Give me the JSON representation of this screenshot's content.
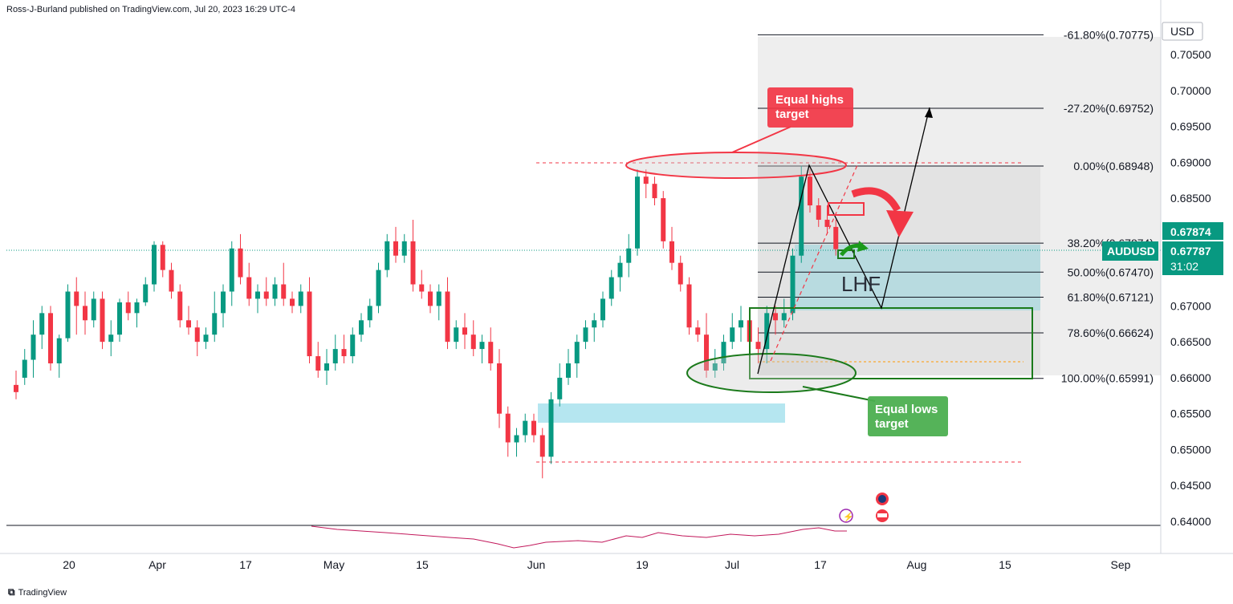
{
  "header": {
    "text": "Ross-J-Burland published on TradingView.com, Jul 20, 2023 16:29 UTC-4"
  },
  "footer": {
    "logo_icon": "tradingview-logo-icon",
    "brand": "TradingView"
  },
  "colors": {
    "up": "#089981",
    "down": "#f23645",
    "axis_label_bg": "#089981",
    "fib_zone": "#e6e6e6",
    "target_zone": "#a9d8df"
  },
  "chart_data": {
    "type": "candlestick",
    "symbol": "AUDUSD",
    "currency": "USD",
    "y_ticks": [
      "0.70500",
      "0.70000",
      "0.69500",
      "0.69000",
      "0.68500",
      "0.68000",
      "0.67500",
      "0.67000",
      "0.66500",
      "0.66000",
      "0.65500",
      "0.65000",
      "0.64500",
      "0.64000"
    ],
    "ylim": [
      0.6395,
      0.7088
    ],
    "x_ticks": [
      "20",
      "Apr",
      "17",
      "May",
      "15",
      "Jun",
      "19",
      "Jul",
      "17",
      "Aug",
      "15",
      "Sep"
    ],
    "last_price": "0.67787",
    "last_price_high_label": "0.67874",
    "countdown": "31:02",
    "fib_levels": [
      {
        "ratio": "-61.80%",
        "price": "0.70775"
      },
      {
        "ratio": "-27.20%",
        "price": "0.69752"
      },
      {
        "ratio": "0.00%",
        "price": "0.68948"
      },
      {
        "ratio": "38.20%",
        "price": "0.67874"
      },
      {
        "ratio": "50.00%",
        "price": "0.67470"
      },
      {
        "ratio": "61.80%",
        "price": "0.67121"
      },
      {
        "ratio": "78.60%",
        "price": "0.66624"
      },
      {
        "ratio": "100.00%",
        "price": "0.65991"
      }
    ],
    "annotations": {
      "equal_highs": "Equal highs target",
      "equal_lows": "Equal lows target",
      "lhf": "LHF"
    },
    "candles": [
      {
        "o": 0.659,
        "h": 0.661,
        "l": 0.657,
        "c": 0.658
      },
      {
        "o": 0.66,
        "h": 0.664,
        "l": 0.659,
        "c": 0.6625
      },
      {
        "o": 0.6625,
        "h": 0.668,
        "l": 0.66,
        "c": 0.666
      },
      {
        "o": 0.666,
        "h": 0.67,
        "l": 0.664,
        "c": 0.669
      },
      {
        "o": 0.669,
        "h": 0.67,
        "l": 0.661,
        "c": 0.662
      },
      {
        "o": 0.662,
        "h": 0.666,
        "l": 0.66,
        "c": 0.6655
      },
      {
        "o": 0.6655,
        "h": 0.673,
        "l": 0.665,
        "c": 0.672
      },
      {
        "o": 0.672,
        "h": 0.674,
        "l": 0.666,
        "c": 0.67
      },
      {
        "o": 0.67,
        "h": 0.672,
        "l": 0.666,
        "c": 0.668
      },
      {
        "o": 0.668,
        "h": 0.672,
        "l": 0.667,
        "c": 0.671
      },
      {
        "o": 0.671,
        "h": 0.672,
        "l": 0.664,
        "c": 0.665
      },
      {
        "o": 0.665,
        "h": 0.668,
        "l": 0.663,
        "c": 0.666
      },
      {
        "o": 0.666,
        "h": 0.671,
        "l": 0.665,
        "c": 0.6705
      },
      {
        "o": 0.6705,
        "h": 0.672,
        "l": 0.668,
        "c": 0.669
      },
      {
        "o": 0.669,
        "h": 0.671,
        "l": 0.667,
        "c": 0.6705
      },
      {
        "o": 0.6705,
        "h": 0.674,
        "l": 0.67,
        "c": 0.673
      },
      {
        "o": 0.673,
        "h": 0.679,
        "l": 0.672,
        "c": 0.6785
      },
      {
        "o": 0.6785,
        "h": 0.679,
        "l": 0.674,
        "c": 0.675
      },
      {
        "o": 0.675,
        "h": 0.676,
        "l": 0.671,
        "c": 0.672
      },
      {
        "o": 0.672,
        "h": 0.673,
        "l": 0.667,
        "c": 0.668
      },
      {
        "o": 0.668,
        "h": 0.67,
        "l": 0.666,
        "c": 0.667
      },
      {
        "o": 0.667,
        "h": 0.668,
        "l": 0.663,
        "c": 0.665
      },
      {
        "o": 0.665,
        "h": 0.667,
        "l": 0.664,
        "c": 0.666
      },
      {
        "o": 0.666,
        "h": 0.672,
        "l": 0.665,
        "c": 0.669
      },
      {
        "o": 0.669,
        "h": 0.673,
        "l": 0.667,
        "c": 0.672
      },
      {
        "o": 0.672,
        "h": 0.679,
        "l": 0.67,
        "c": 0.678
      },
      {
        "o": 0.678,
        "h": 0.68,
        "l": 0.673,
        "c": 0.674
      },
      {
        "o": 0.674,
        "h": 0.676,
        "l": 0.67,
        "c": 0.671
      },
      {
        "o": 0.671,
        "h": 0.673,
        "l": 0.669,
        "c": 0.672
      },
      {
        "o": 0.672,
        "h": 0.674,
        "l": 0.67,
        "c": 0.671
      },
      {
        "o": 0.671,
        "h": 0.674,
        "l": 0.67,
        "c": 0.673
      },
      {
        "o": 0.673,
        "h": 0.676,
        "l": 0.67,
        "c": 0.671
      },
      {
        "o": 0.671,
        "h": 0.672,
        "l": 0.669,
        "c": 0.67
      },
      {
        "o": 0.67,
        "h": 0.673,
        "l": 0.669,
        "c": 0.672
      },
      {
        "o": 0.672,
        "h": 0.674,
        "l": 0.662,
        "c": 0.663
      },
      {
        "o": 0.663,
        "h": 0.665,
        "l": 0.66,
        "c": 0.661
      },
      {
        "o": 0.661,
        "h": 0.664,
        "l": 0.659,
        "c": 0.662
      },
      {
        "o": 0.662,
        "h": 0.666,
        "l": 0.661,
        "c": 0.664
      },
      {
        "o": 0.664,
        "h": 0.666,
        "l": 0.662,
        "c": 0.663
      },
      {
        "o": 0.663,
        "h": 0.667,
        "l": 0.662,
        "c": 0.666
      },
      {
        "o": 0.666,
        "h": 0.669,
        "l": 0.665,
        "c": 0.668
      },
      {
        "o": 0.668,
        "h": 0.671,
        "l": 0.667,
        "c": 0.67
      },
      {
        "o": 0.67,
        "h": 0.676,
        "l": 0.669,
        "c": 0.675
      },
      {
        "o": 0.675,
        "h": 0.68,
        "l": 0.674,
        "c": 0.679
      },
      {
        "o": 0.679,
        "h": 0.681,
        "l": 0.676,
        "c": 0.677
      },
      {
        "o": 0.677,
        "h": 0.68,
        "l": 0.676,
        "c": 0.679
      },
      {
        "o": 0.679,
        "h": 0.682,
        "l": 0.672,
        "c": 0.673
      },
      {
        "o": 0.673,
        "h": 0.675,
        "l": 0.671,
        "c": 0.672
      },
      {
        "o": 0.672,
        "h": 0.673,
        "l": 0.669,
        "c": 0.67
      },
      {
        "o": 0.67,
        "h": 0.673,
        "l": 0.668,
        "c": 0.672
      },
      {
        "o": 0.672,
        "h": 0.674,
        "l": 0.664,
        "c": 0.665
      },
      {
        "o": 0.665,
        "h": 0.668,
        "l": 0.664,
        "c": 0.667
      },
      {
        "o": 0.667,
        "h": 0.669,
        "l": 0.664,
        "c": 0.666
      },
      {
        "o": 0.666,
        "h": 0.668,
        "l": 0.663,
        "c": 0.664
      },
      {
        "o": 0.664,
        "h": 0.666,
        "l": 0.662,
        "c": 0.665
      },
      {
        "o": 0.665,
        "h": 0.667,
        "l": 0.661,
        "c": 0.662
      },
      {
        "o": 0.662,
        "h": 0.664,
        "l": 0.653,
        "c": 0.655
      },
      {
        "o": 0.655,
        "h": 0.656,
        "l": 0.649,
        "c": 0.651
      },
      {
        "o": 0.651,
        "h": 0.653,
        "l": 0.649,
        "c": 0.652
      },
      {
        "o": 0.652,
        "h": 0.655,
        "l": 0.651,
        "c": 0.654
      },
      {
        "o": 0.654,
        "h": 0.655,
        "l": 0.651,
        "c": 0.652
      },
      {
        "o": 0.652,
        "h": 0.653,
        "l": 0.646,
        "c": 0.649
      },
      {
        "o": 0.649,
        "h": 0.658,
        "l": 0.648,
        "c": 0.657
      },
      {
        "o": 0.657,
        "h": 0.662,
        "l": 0.656,
        "c": 0.66
      },
      {
        "o": 0.66,
        "h": 0.664,
        "l": 0.659,
        "c": 0.662
      },
      {
        "o": 0.662,
        "h": 0.666,
        "l": 0.66,
        "c": 0.665
      },
      {
        "o": 0.665,
        "h": 0.668,
        "l": 0.664,
        "c": 0.667
      },
      {
        "o": 0.667,
        "h": 0.669,
        "l": 0.665,
        "c": 0.668
      },
      {
        "o": 0.668,
        "h": 0.672,
        "l": 0.667,
        "c": 0.671
      },
      {
        "o": 0.671,
        "h": 0.675,
        "l": 0.67,
        "c": 0.674
      },
      {
        "o": 0.674,
        "h": 0.677,
        "l": 0.672,
        "c": 0.676
      },
      {
        "o": 0.676,
        "h": 0.68,
        "l": 0.674,
        "c": 0.678
      },
      {
        "o": 0.678,
        "h": 0.689,
        "l": 0.677,
        "c": 0.688
      },
      {
        "o": 0.688,
        "h": 0.689,
        "l": 0.685,
        "c": 0.687
      },
      {
        "o": 0.687,
        "h": 0.688,
        "l": 0.684,
        "c": 0.685
      },
      {
        "o": 0.685,
        "h": 0.686,
        "l": 0.678,
        "c": 0.679
      },
      {
        "o": 0.679,
        "h": 0.681,
        "l": 0.675,
        "c": 0.676
      },
      {
        "o": 0.676,
        "h": 0.677,
        "l": 0.672,
        "c": 0.673
      },
      {
        "o": 0.673,
        "h": 0.674,
        "l": 0.666,
        "c": 0.667
      },
      {
        "o": 0.667,
        "h": 0.668,
        "l": 0.665,
        "c": 0.666
      },
      {
        "o": 0.666,
        "h": 0.669,
        "l": 0.66,
        "c": 0.661
      },
      {
        "o": 0.661,
        "h": 0.664,
        "l": 0.66,
        "c": 0.662
      },
      {
        "o": 0.662,
        "h": 0.666,
        "l": 0.661,
        "c": 0.665
      },
      {
        "o": 0.665,
        "h": 0.669,
        "l": 0.664,
        "c": 0.667
      },
      {
        "o": 0.667,
        "h": 0.67,
        "l": 0.665,
        "c": 0.668
      },
      {
        "o": 0.668,
        "h": 0.669,
        "l": 0.664,
        "c": 0.665
      },
      {
        "o": 0.665,
        "h": 0.667,
        "l": 0.662,
        "c": 0.664
      },
      {
        "o": 0.664,
        "h": 0.67,
        "l": 0.662,
        "c": 0.669
      },
      {
        "o": 0.669,
        "h": 0.67,
        "l": 0.666,
        "c": 0.668
      },
      {
        "o": 0.668,
        "h": 0.671,
        "l": 0.667,
        "c": 0.669
      },
      {
        "o": 0.669,
        "h": 0.678,
        "l": 0.668,
        "c": 0.677
      },
      {
        "o": 0.677,
        "h": 0.6895,
        "l": 0.676,
        "c": 0.688
      },
      {
        "o": 0.688,
        "h": 0.689,
        "l": 0.683,
        "c": 0.684
      },
      {
        "o": 0.684,
        "h": 0.685,
        "l": 0.681,
        "c": 0.682
      },
      {
        "o": 0.682,
        "h": 0.684,
        "l": 0.68,
        "c": 0.681
      },
      {
        "o": 0.681,
        "h": 0.682,
        "l": 0.677,
        "c": 0.6779
      }
    ]
  }
}
